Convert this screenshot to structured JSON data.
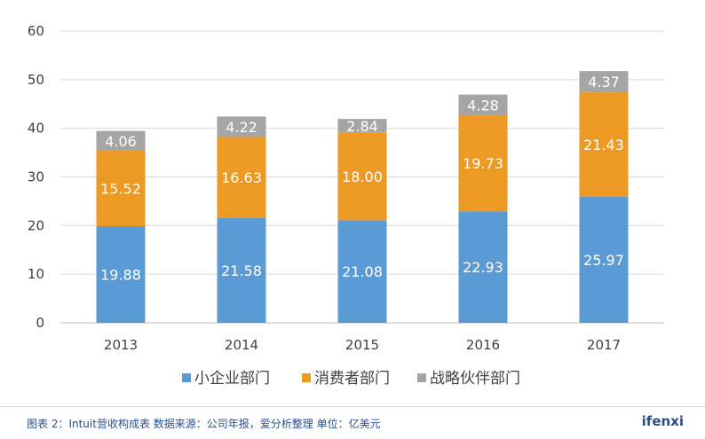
{
  "chart_data": {
    "type": "bar",
    "stacked": true,
    "categories": [
      "2013",
      "2014",
      "2015",
      "2016",
      "2017"
    ],
    "series": [
      {
        "name": "小企业部门",
        "color": "#5b9bd5",
        "values": [
          19.88,
          21.58,
          21.08,
          22.93,
          25.97
        ]
      },
      {
        "name": "消费者部门",
        "color": "#ed9a24",
        "values": [
          15.52,
          16.63,
          18.0,
          19.73,
          21.43
        ]
      },
      {
        "name": "战略伙伴部门",
        "color": "#a5a5a5",
        "values": [
          4.06,
          4.22,
          2.84,
          4.28,
          4.37
        ]
      }
    ],
    "data_labels": [
      [
        "19.88",
        "21.58",
        "21.08",
        "22.93",
        "25.97"
      ],
      [
        "15.52",
        "16.63",
        "18.00",
        "19.73",
        "21.43"
      ],
      [
        "4.06",
        "4.22",
        "2.84",
        "4.28",
        "4.37"
      ]
    ],
    "yticks": [
      "0",
      "10",
      "20",
      "30",
      "40",
      "50",
      "60"
    ],
    "ylim": [
      0,
      60
    ],
    "grid": true,
    "legend_position": "bottom"
  },
  "footer": {
    "caption": "图表 2：Intuit营收构成表     数据来源：公司年报，爱分析整理   单位：亿美元",
    "logo": "ifenxi"
  }
}
